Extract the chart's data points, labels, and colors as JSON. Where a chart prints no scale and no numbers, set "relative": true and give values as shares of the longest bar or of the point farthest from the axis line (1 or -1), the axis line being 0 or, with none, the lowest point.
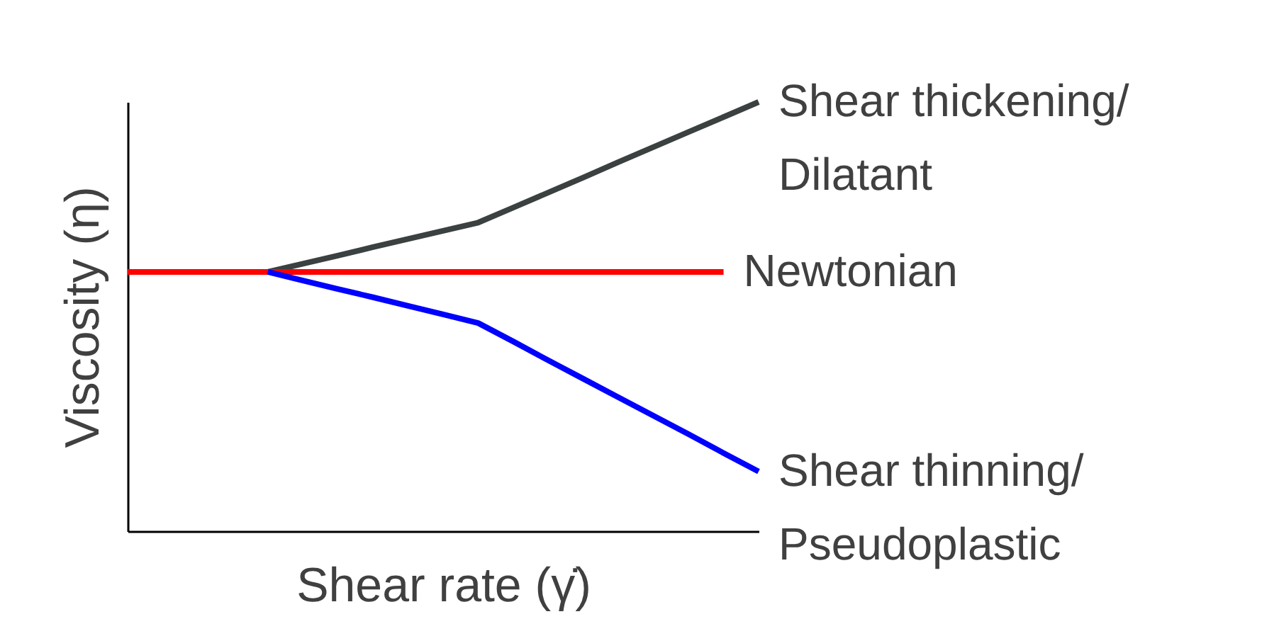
{
  "chart_data": {
    "type": "line",
    "relative": true,
    "xlabel": "Shear rate (γ̇)",
    "ylabel": "Viscosity (η)",
    "legend": false,
    "marker": "none",
    "line_style": "solid",
    "categories": [
      null,
      null,
      null,
      null,
      null,
      null,
      null,
      null,
      null,
      null,
      null,
      null,
      null,
      null,
      null,
      null,
      null,
      null,
      null
    ],
    "series": [
      {
        "name": "Shear thickening/\nDilatant",
        "color": "#3b4040",
        "values": [
          null,
          null,
          null,
          null,
          0.604,
          0.623,
          0.642,
          0.662,
          0.681,
          0.7,
          0.719,
          0.754,
          0.789,
          0.824,
          0.86,
          0.895,
          0.93,
          0.965,
          1
        ]
      },
      {
        "name": "Newtonian",
        "color": "#ff0000",
        "values": [
          0.604,
          0.604,
          0.604,
          0.604,
          0.604,
          0.604,
          0.604,
          0.604,
          0.604,
          0.604,
          0.604,
          0.604,
          0.604,
          0.604,
          0.604,
          0.604,
          0.604,
          0.604,
          null
        ]
      },
      {
        "name": "Shear thinning/\nPseudoplastic",
        "color": "#0000ff",
        "values": [
          null,
          null,
          null,
          null,
          0.604,
          0.584,
          0.564,
          0.545,
          0.525,
          0.505,
          0.485,
          0.442,
          0.398,
          0.355,
          0.312,
          0.269,
          0.226,
          0.182,
          0.139
        ]
      }
    ]
  }
}
